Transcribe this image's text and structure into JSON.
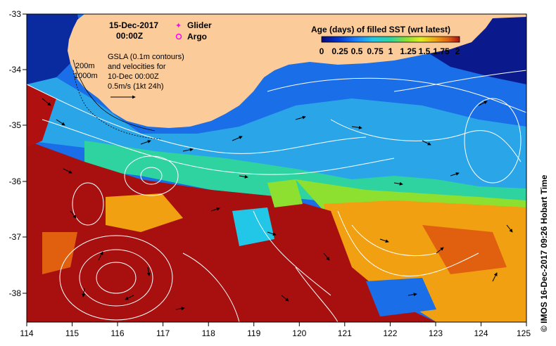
{
  "map": {
    "date_line1": "15-Dec-2017",
    "date_line2": "00:00Z",
    "legend_markers": [
      {
        "label": "Glider",
        "color": "#ff00ff",
        "symbol": "star"
      },
      {
        "label": "Argo",
        "color": "#ff00ff",
        "symbol": "circle"
      }
    ],
    "depth_labels": [
      "200m",
      "1000m"
    ],
    "gsla_text": [
      "GSLA (0.1m contours)",
      "and velocities for",
      "10-Dec 00:00Z",
      "0.5m/s (1kt 24h)"
    ],
    "credit": "© IMOS 16-Dec-2017 09:26 Hobart Time",
    "land_color": "#fccb9a",
    "x_ticks": [
      "114",
      "115",
      "116",
      "117",
      "118",
      "119",
      "120",
      "121",
      "122",
      "123",
      "124",
      "125"
    ],
    "y_ticks": [
      "-33",
      "-34",
      "-35",
      "-36",
      "-37",
      "-38"
    ]
  },
  "colorbar": {
    "title": "Age (days) of filled SST (wrt latest)",
    "tick_labels": [
      "0",
      "0.25",
      "0.5",
      "0.75",
      "1",
      "1.25",
      "1.5",
      "1.75",
      "2"
    ],
    "colors": [
      "#0a0a78",
      "#0033cc",
      "#1a7fff",
      "#22c6e6",
      "#2ed3a0",
      "#8ee030",
      "#e0ee20",
      "#f0a010",
      "#e06010",
      "#b01010"
    ]
  }
}
